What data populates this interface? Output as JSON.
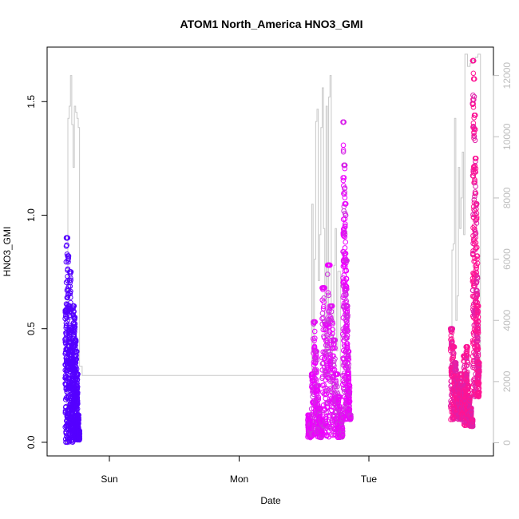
{
  "chart_data": {
    "type": "scatter",
    "title": "ATOM1 North_America HNO3_GMI",
    "xlabel": "Date",
    "ylabel": "HNO3_GMI",
    "x_ticks": [
      {
        "label": "Sun",
        "value": 0.0
      },
      {
        "label": "Mon",
        "value": 1.0
      },
      {
        "label": "Tue",
        "value": 2.0
      }
    ],
    "xlim": [
      -0.48,
      2.96
    ],
    "ylim": [
      -0.06,
      1.74
    ],
    "y_ticks": [
      0.0,
      0.5,
      1.0,
      1.5
    ],
    "y_tick_labels": [
      "0.0",
      "0.5",
      "1.0",
      "1.5"
    ],
    "y2_ticks": [
      0,
      2000,
      4000,
      6000,
      8000,
      10000,
      12000
    ],
    "y2_tick_labels": [
      "0",
      "2000",
      "4000",
      "6000",
      "8000",
      "10000",
      "12000"
    ],
    "y2lim": [
      -430,
      12930
    ],
    "grid": false,
    "colors": {
      "flight1": "#5500ff",
      "flight2": "#ee00ff",
      "flight2b": "#cc33dd",
      "flight3": "#ff1493",
      "flight3b": "#dd22aa",
      "secondary": "#c8c8c8"
    },
    "flight1_segments": [
      {
        "x0": -0.34,
        "x1": -0.28,
        "low": 0.0,
        "high": 0.9,
        "peaks": [
          0.58,
          0.9,
          0.82,
          0.6,
          0.75,
          0.5,
          0.35
        ]
      },
      {
        "x0": -0.28,
        "x1": -0.23,
        "low": 0.01,
        "high": 0.6,
        "peaks": [
          0.6,
          0.55,
          0.45,
          0.4,
          0.3,
          0.12,
          0.05
        ]
      }
    ],
    "flight2_segments": [
      {
        "x0": 1.53,
        "x1": 1.64,
        "low": 0.02,
        "high": 0.53,
        "peaks": [
          0.12,
          0.08,
          0.3,
          0.53,
          0.4,
          0.25,
          0.15,
          0.1
        ]
      },
      {
        "x0": 1.64,
        "x1": 1.8,
        "low": 0.02,
        "high": 0.78,
        "peaks": [
          0.68,
          0.52,
          0.78,
          0.6,
          0.45,
          0.3,
          0.2,
          0.12
        ]
      },
      {
        "x0": 1.8,
        "x1": 1.86,
        "low": 0.1,
        "high": 1.41,
        "peaks": [
          1.41,
          1.22,
          1.05,
          0.8,
          0.6,
          0.4,
          0.25,
          0.12
        ]
      }
    ],
    "flight3_segments": [
      {
        "x0": 2.63,
        "x1": 2.73,
        "low": 0.1,
        "high": 0.5,
        "peaks": [
          0.5,
          0.42,
          0.35,
          0.28,
          0.25,
          0.3,
          0.22
        ]
      },
      {
        "x0": 2.73,
        "x1": 2.8,
        "low": 0.07,
        "high": 0.42,
        "peaks": [
          0.38,
          0.3,
          0.42,
          0.25,
          0.2,
          0.15,
          0.1
        ]
      },
      {
        "x0": 2.8,
        "x1": 2.85,
        "low": 0.2,
        "high": 1.68,
        "peaks": [
          1.68,
          1.6,
          1.44,
          1.25,
          1.05,
          0.82,
          0.6,
          0.35
        ]
      }
    ],
    "secondary_series": {
      "axis": "right",
      "x": [
        -0.34,
        -0.33,
        -0.32,
        -0.31,
        -0.3,
        -0.29,
        -0.28,
        -0.27,
        -0.26,
        -0.25,
        -0.24,
        -0.23,
        -0.21,
        1.55,
        1.56,
        1.57,
        1.58,
        1.59,
        1.6,
        1.61,
        1.62,
        1.63,
        1.64,
        1.65,
        1.66,
        1.67,
        1.68,
        1.69,
        1.7,
        1.71,
        1.72,
        1.73,
        1.74,
        1.75,
        1.76,
        1.78,
        1.8,
        1.82,
        2.64,
        2.65,
        2.66,
        2.67,
        2.68,
        2.69,
        2.7,
        2.71,
        2.72,
        2.73,
        2.74,
        2.76,
        2.78,
        2.8,
        2.82,
        2.84,
        2.86
      ],
      "y": [
        0,
        2500,
        10600,
        11000,
        12000,
        10400,
        9000,
        11000,
        10800,
        10600,
        10300,
        2500,
        2200,
        2300,
        7800,
        1800,
        6000,
        10500,
        10900,
        5300,
        6800,
        10300,
        11600,
        7000,
        2100,
        11000,
        3000,
        11300,
        12000,
        1500,
        3500,
        5800,
        7000,
        3000,
        5600,
        2000,
        1800,
        2200,
        6300,
        6500,
        10600,
        4000,
        4800,
        9000,
        7000,
        8000,
        9500,
        6800,
        12700,
        12300,
        12400,
        12500,
        12600,
        12700,
        2000
      ]
    }
  }
}
